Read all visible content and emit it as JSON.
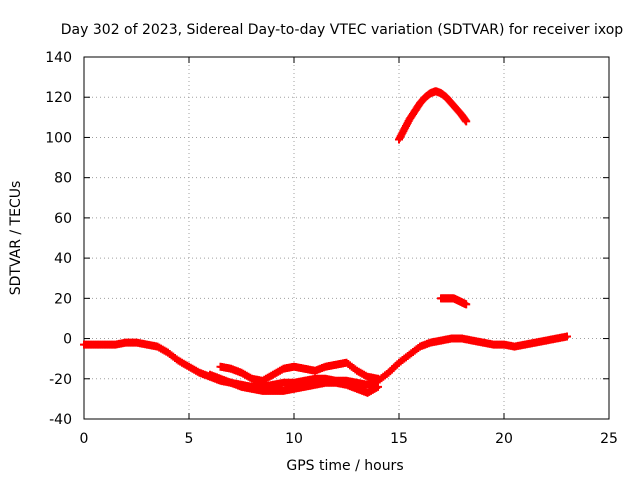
{
  "chart_data": {
    "type": "scatter",
    "title": "Day 302 of 2023, Sidereal Day-to-day VTEC variation (SDTVAR) for receiver ixop",
    "xlabel": "GPS time / hours",
    "ylabel": "SDTVAR / TECUs",
    "xlim": [
      0,
      25
    ],
    "ylim": [
      -40,
      140
    ],
    "xticks": [
      "0",
      "5",
      "10",
      "15",
      "20",
      "25"
    ],
    "yticks": [
      "-40",
      "-20",
      "0",
      "20",
      "40",
      "60",
      "80",
      "100",
      "120",
      "140"
    ],
    "grid": true,
    "marker_color": "#ff0000",
    "series": [
      {
        "name": "main-track",
        "x": [
          0.0,
          0.5,
          1.0,
          1.5,
          2.0,
          2.5,
          3.0,
          3.5,
          4.0,
          4.5,
          5.0,
          5.5,
          6.0,
          6.5,
          7.0,
          7.5,
          8.0,
          8.5,
          9.0,
          9.5,
          10.0,
          10.5,
          11.0,
          11.5,
          12.0,
          12.5,
          13.0,
          13.5,
          14.0,
          14.5,
          15.0,
          15.5,
          16.0,
          16.5,
          17.0,
          17.5,
          18.0,
          18.5,
          19.0,
          19.5,
          20.0,
          20.5,
          21.0,
          21.5,
          22.0,
          22.5,
          23.0
        ],
        "y": [
          -3,
          -3,
          -3,
          -3,
          -2,
          -2,
          -3,
          -4,
          -7,
          -11,
          -14,
          -17,
          -19,
          -21,
          -22,
          -23,
          -24,
          -24,
          -23,
          -22,
          -22,
          -21,
          -20,
          -20,
          -21,
          -21,
          -22,
          -23,
          -21,
          -17,
          -12,
          -8,
          -4,
          -2,
          -1,
          0,
          0,
          -1,
          -2,
          -3,
          -3,
          -4,
          -3,
          -2,
          -1,
          0,
          1
        ]
      },
      {
        "name": "lower-branch",
        "x": [
          6.0,
          6.5,
          7.0,
          7.5,
          8.0,
          8.5,
          9.0,
          9.5,
          10.0,
          10.5,
          11.0,
          11.5,
          12.0,
          12.5,
          13.0,
          13.5,
          14.0
        ],
        "y": [
          -18,
          -20,
          -22,
          -24,
          -25,
          -26,
          -26,
          -26,
          -25,
          -24,
          -23,
          -22,
          -22,
          -23,
          -25,
          -27,
          -24
        ]
      },
      {
        "name": "upper-branch",
        "x": [
          6.5,
          7.0,
          7.5,
          8.0,
          8.5,
          9.0,
          9.5,
          10.0,
          10.5,
          11.0,
          11.5,
          12.0,
          12.5,
          13.0,
          13.5,
          14.0
        ],
        "y": [
          -14,
          -15,
          -17,
          -20,
          -21,
          -18,
          -15,
          -14,
          -15,
          -16,
          -14,
          -13,
          -12,
          -16,
          -19,
          -20
        ]
      },
      {
        "name": "high-arc",
        "x": [
          15.0,
          15.25,
          15.5,
          15.75,
          16.0,
          16.25,
          16.5,
          16.75,
          17.0,
          17.25,
          17.5,
          17.75,
          18.0,
          18.2
        ],
        "y": [
          99,
          104,
          109,
          113,
          117,
          120,
          122,
          123,
          122,
          120,
          117,
          114,
          111,
          108
        ]
      },
      {
        "name": "short-segment-20",
        "x": [
          17.0,
          17.2,
          17.4,
          17.6,
          17.8,
          18.0,
          18.2
        ],
        "y": [
          20,
          20,
          20,
          20,
          19,
          18,
          17
        ]
      }
    ]
  }
}
